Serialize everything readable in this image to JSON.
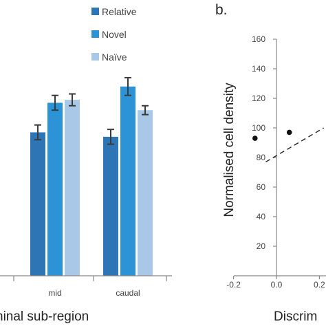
{
  "chart_data": [
    {
      "type": "bar",
      "xlabel": "hinal sub-region",
      "categories": [
        "",
        "mid",
        "caudal"
      ],
      "series": [
        {
          "name": "Relative",
          "color": "#2e75b6",
          "values": [
            null,
            97,
            94
          ],
          "errors": [
            null,
            5,
            5
          ]
        },
        {
          "name": "Novel",
          "color": "#2b93d6",
          "values": [
            null,
            117,
            128
          ],
          "errors": [
            null,
            5,
            6
          ]
        },
        {
          "name": "Naïve",
          "color": "#a9c8e8",
          "values": [
            null,
            119,
            112
          ],
          "errors": [
            null,
            4,
            3
          ]
        }
      ],
      "legend_position": "top",
      "ylim": [
        0,
        160
      ]
    },
    {
      "type": "scatter",
      "panel_label": "b.",
      "ylabel": "Normalised cell density",
      "xlabel": "Discrim",
      "x_ticks": [
        "-0.2",
        "0.0",
        "0.2"
      ],
      "y_ticks": [
        "20",
        "40",
        "60",
        "80",
        "100",
        "120",
        "140",
        "160"
      ],
      "xlim": [
        -0.2,
        0.22
      ],
      "ylim": [
        0,
        160
      ],
      "points": [
        {
          "x": -0.1,
          "y": 93
        },
        {
          "x": 0.06,
          "y": 97
        }
      ],
      "trendline": {
        "style": "dashed",
        "x": [
          -0.05,
          0.22
        ],
        "y": [
          77,
          100
        ]
      }
    }
  ]
}
